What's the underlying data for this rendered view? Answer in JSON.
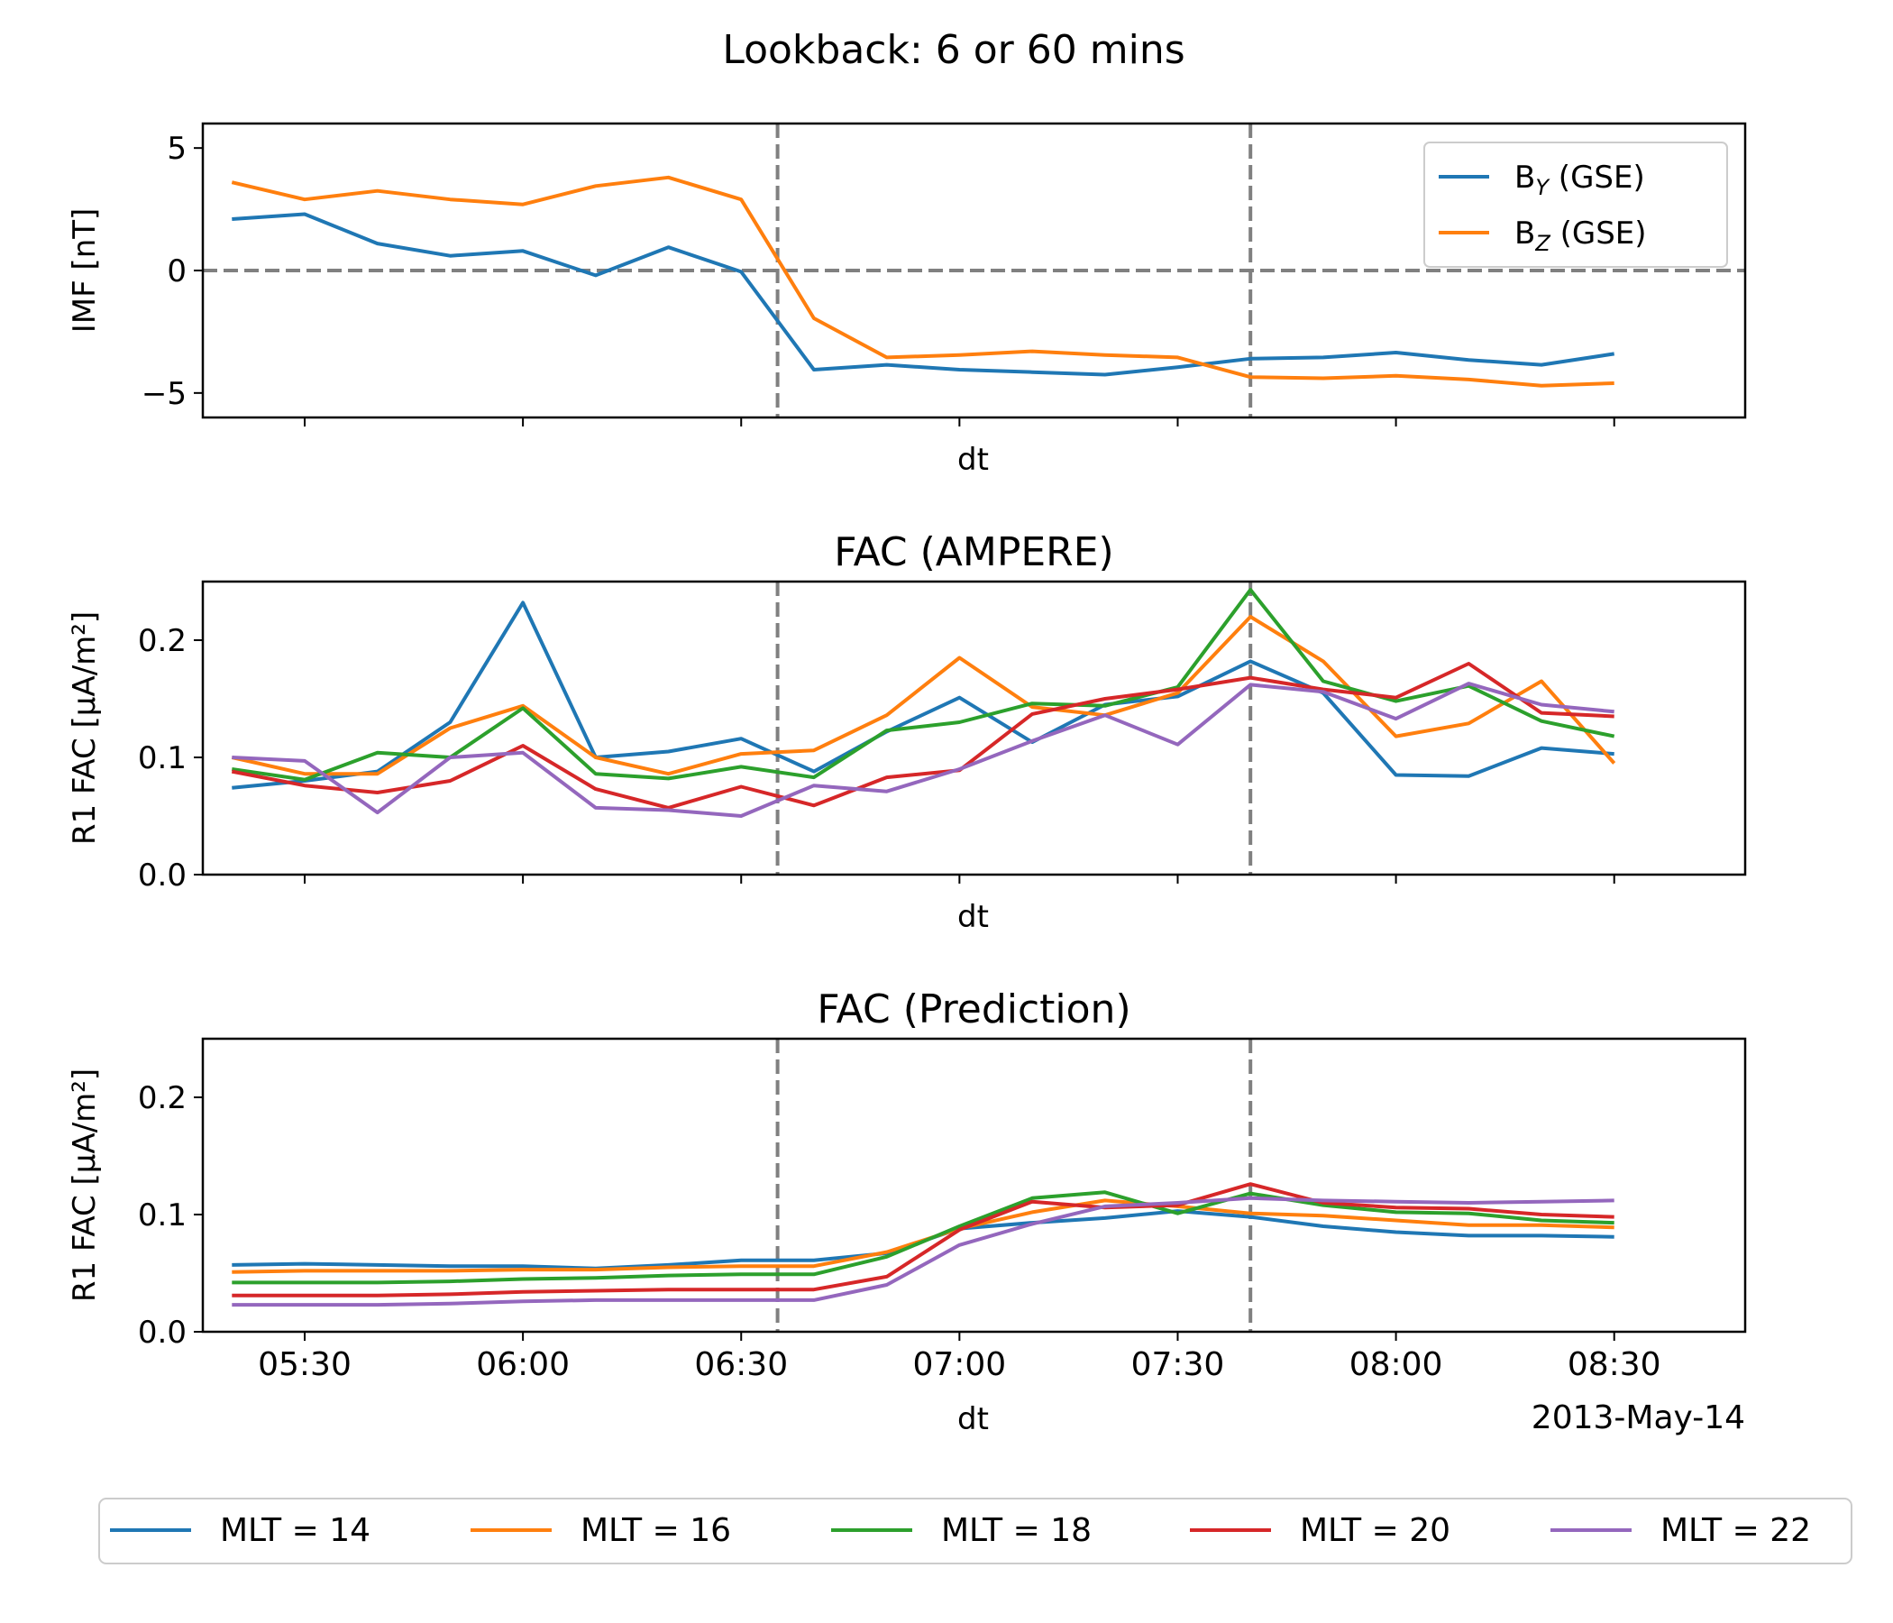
{
  "figure": {
    "suptitle": "Lookback: 6 or 60 mins",
    "date_label": "2013-May-14",
    "xlabel": "dt"
  },
  "colors": {
    "blue": "#1f77b4",
    "orange": "#ff7f0e",
    "green": "#2ca02c",
    "red": "#d62728",
    "purple": "#9467bd",
    "reference_line": "#808080"
  },
  "chart_data": [
    {
      "type": "line",
      "title": "",
      "xlabel": "dt",
      "ylabel": "IMF [nT]",
      "ylim": [
        -6,
        6
      ],
      "yticks": [
        -5,
        0,
        5
      ],
      "ytick_labels": [
        "−5",
        "0",
        "5"
      ],
      "xlim": [
        "05:16",
        "08:48"
      ],
      "x": [
        "05:20",
        "05:30",
        "05:40",
        "05:50",
        "06:00",
        "06:10",
        "06:20",
        "06:30",
        "06:40",
        "06:50",
        "07:00",
        "07:10",
        "07:20",
        "07:30",
        "07:40",
        "07:50",
        "08:00",
        "08:10",
        "08:20",
        "08:30"
      ],
      "hlines": [
        0
      ],
      "vlines": [
        "06:35",
        "07:40"
      ],
      "legend": {
        "placement": "upper right",
        "entries": [
          {
            "base": "B",
            "sub": "Y",
            "suffix": " (GSE)",
            "color_key": "blue"
          },
          {
            "base": "B",
            "sub": "Z",
            "suffix": " (GSE)",
            "color_key": "orange"
          }
        ]
      },
      "series": [
        {
          "color_key": "blue",
          "values": [
            2.1,
            2.3,
            1.1,
            0.6,
            0.8,
            -0.2,
            0.95,
            -0.05,
            -4.05,
            -3.85,
            -4.05,
            -4.15,
            -4.25,
            -3.95,
            -3.6,
            -3.55,
            -3.35,
            -3.65,
            -3.85,
            -3.4
          ]
        },
        {
          "color_key": "orange",
          "values": [
            3.6,
            2.9,
            3.25,
            2.9,
            2.7,
            3.45,
            3.8,
            2.9,
            -1.95,
            -3.55,
            -3.45,
            -3.3,
            -3.45,
            -3.55,
            -4.35,
            -4.4,
            -4.3,
            -4.45,
            -4.7,
            -4.6
          ]
        }
      ]
    },
    {
      "type": "line",
      "title": "FAC (AMPERE)",
      "xlabel": "dt",
      "ylabel": "R1 FAC [μA/m²]",
      "ylim": [
        0,
        0.25
      ],
      "yticks": [
        0,
        0.1,
        0.2
      ],
      "ytick_labels": [
        "0.0",
        "0.1",
        "0.2"
      ],
      "xlim": [
        "05:16",
        "08:48"
      ],
      "x": [
        "05:20",
        "05:30",
        "05:40",
        "05:50",
        "06:00",
        "06:10",
        "06:20",
        "06:30",
        "06:40",
        "06:50",
        "07:00",
        "07:10",
        "07:20",
        "07:30",
        "07:40",
        "07:50",
        "08:00",
        "08:10",
        "08:20",
        "08:30"
      ],
      "vlines": [
        "06:35",
        "07:40"
      ],
      "series": [
        {
          "name": "MLT = 14",
          "color_key": "blue",
          "values": [
            0.074,
            0.08,
            0.088,
            0.13,
            0.232,
            0.1,
            0.105,
            0.116,
            0.088,
            0.122,
            0.151,
            0.113,
            0.145,
            0.152,
            0.182,
            0.155,
            0.085,
            0.084,
            0.108,
            0.103
          ]
        },
        {
          "name": "MLT = 16",
          "color_key": "orange",
          "values": [
            0.1,
            0.086,
            0.086,
            0.125,
            0.144,
            0.1,
            0.086,
            0.103,
            0.106,
            0.136,
            0.185,
            0.143,
            0.136,
            0.155,
            0.22,
            0.182,
            0.118,
            0.129,
            0.165,
            0.095
          ]
        },
        {
          "name": "MLT = 18",
          "color_key": "green",
          "values": [
            0.09,
            0.081,
            0.104,
            0.1,
            0.142,
            0.086,
            0.082,
            0.092,
            0.083,
            0.123,
            0.13,
            0.146,
            0.144,
            0.16,
            0.243,
            0.165,
            0.148,
            0.161,
            0.131,
            0.118
          ]
        },
        {
          "name": "MLT = 20",
          "color_key": "red",
          "values": [
            0.088,
            0.076,
            0.07,
            0.08,
            0.11,
            0.073,
            0.057,
            0.075,
            0.059,
            0.083,
            0.089,
            0.137,
            0.15,
            0.158,
            0.168,
            0.158,
            0.151,
            0.18,
            0.138,
            0.135
          ]
        },
        {
          "name": "MLT = 22",
          "color_key": "purple",
          "values": [
            0.1,
            0.097,
            0.053,
            0.1,
            0.104,
            0.057,
            0.055,
            0.05,
            0.076,
            0.071,
            0.09,
            0.114,
            0.136,
            0.111,
            0.162,
            0.156,
            0.133,
            0.163,
            0.145,
            0.139
          ]
        }
      ]
    },
    {
      "type": "line",
      "title": "FAC (Prediction)",
      "xlabel": "dt",
      "ylabel": "R1 FAC [μA/m²]",
      "ylim": [
        0,
        0.25
      ],
      "yticks": [
        0,
        0.1,
        0.2
      ],
      "ytick_labels": [
        "0.0",
        "0.1",
        "0.2"
      ],
      "xlim": [
        "05:16",
        "08:48"
      ],
      "xticks": [
        "05:30",
        "06:00",
        "06:30",
        "07:00",
        "07:30",
        "08:00",
        "08:30"
      ],
      "x": [
        "05:20",
        "05:30",
        "05:40",
        "05:50",
        "06:00",
        "06:10",
        "06:20",
        "06:30",
        "06:40",
        "06:50",
        "07:00",
        "07:10",
        "07:20",
        "07:30",
        "07:40",
        "07:50",
        "08:00",
        "08:10",
        "08:20",
        "08:30"
      ],
      "vlines": [
        "06:35",
        "07:40"
      ],
      "series": [
        {
          "name": "MLT = 14",
          "color_key": "blue",
          "values": [
            0.057,
            0.058,
            0.057,
            0.056,
            0.056,
            0.054,
            0.057,
            0.061,
            0.061,
            0.067,
            0.088,
            0.093,
            0.097,
            0.103,
            0.098,
            0.09,
            0.085,
            0.082,
            0.082,
            0.081
          ]
        },
        {
          "name": "MLT = 16",
          "color_key": "orange",
          "values": [
            0.051,
            0.052,
            0.052,
            0.052,
            0.053,
            0.053,
            0.055,
            0.056,
            0.056,
            0.068,
            0.088,
            0.102,
            0.112,
            0.107,
            0.101,
            0.099,
            0.095,
            0.091,
            0.091,
            0.089
          ]
        },
        {
          "name": "MLT = 18",
          "color_key": "green",
          "values": [
            0.042,
            0.042,
            0.042,
            0.043,
            0.045,
            0.046,
            0.048,
            0.049,
            0.049,
            0.064,
            0.09,
            0.114,
            0.119,
            0.101,
            0.118,
            0.108,
            0.102,
            0.101,
            0.095,
            0.093
          ]
        },
        {
          "name": "MLT = 20",
          "color_key": "red",
          "values": [
            0.031,
            0.031,
            0.031,
            0.032,
            0.034,
            0.035,
            0.036,
            0.036,
            0.036,
            0.047,
            0.087,
            0.111,
            0.106,
            0.108,
            0.126,
            0.11,
            0.106,
            0.105,
            0.1,
            0.098
          ]
        },
        {
          "name": "MLT = 22",
          "color_key": "purple",
          "values": [
            0.023,
            0.023,
            0.023,
            0.024,
            0.026,
            0.027,
            0.027,
            0.027,
            0.027,
            0.04,
            0.074,
            0.092,
            0.107,
            0.11,
            0.114,
            0.112,
            0.111,
            0.11,
            0.111,
            0.112
          ]
        }
      ]
    }
  ],
  "bottom_legend": {
    "entries": [
      {
        "label": "MLT = 14",
        "color_key": "blue"
      },
      {
        "label": "MLT = 16",
        "color_key": "orange"
      },
      {
        "label": "MLT = 18",
        "color_key": "green"
      },
      {
        "label": "MLT = 20",
        "color_key": "red"
      },
      {
        "label": "MLT = 22",
        "color_key": "purple"
      }
    ]
  }
}
